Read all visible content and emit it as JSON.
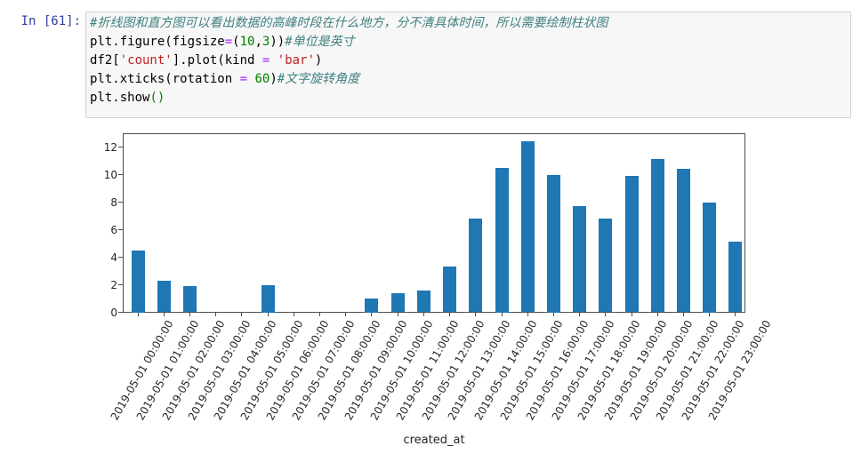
{
  "notebook": {
    "prompt": "In [61]:",
    "code_lines": [
      {
        "segments": [
          {
            "type": "comment",
            "text": "#折线图和直方图可以看出数据的高峰时段在什么地方，分不清具体时间，所以需要绘制柱状图"
          }
        ]
      },
      {
        "segments": [
          {
            "type": "plain",
            "text": "plt.figure(figsize"
          },
          {
            "type": "operator",
            "text": "="
          },
          {
            "type": "plain",
            "text": "("
          },
          {
            "type": "number",
            "text": "10"
          },
          {
            "type": "plain",
            "text": ","
          },
          {
            "type": "number",
            "text": "3"
          },
          {
            "type": "plain",
            "text": "))"
          },
          {
            "type": "comment",
            "text": "#单位是英寸"
          }
        ]
      },
      {
        "segments": [
          {
            "type": "plain",
            "text": "df2["
          },
          {
            "type": "string",
            "text": "'count'"
          },
          {
            "type": "plain",
            "text": "].plot(kind "
          },
          {
            "type": "operator",
            "text": "="
          },
          {
            "type": "plain",
            "text": " "
          },
          {
            "type": "string",
            "text": "'bar'"
          },
          {
            "type": "plain",
            "text": ")"
          }
        ]
      },
      {
        "segments": [
          {
            "type": "plain",
            "text": "plt.xticks(rotation "
          },
          {
            "type": "operator",
            "text": "="
          },
          {
            "type": "plain",
            "text": " "
          },
          {
            "type": "number",
            "text": "60"
          },
          {
            "type": "plain",
            "text": ")"
          },
          {
            "type": "comment",
            "text": "#文字旋转角度"
          }
        ]
      },
      {
        "segments": [
          {
            "type": "plain",
            "text": "plt.show"
          },
          {
            "type": "bracket",
            "text": "()"
          }
        ]
      }
    ],
    "syntax_colors": {
      "plain": "#000000",
      "comment": "#408080",
      "string": "#BA2121",
      "number": "#008000",
      "operator": "#AA22FF",
      "bracket": "#008000"
    },
    "prompt_color": "#303F9F",
    "input_bg": "#f7f7f7",
    "input_border": "#cfcfcf"
  },
  "chart_data": {
    "type": "bar",
    "title": "",
    "xlabel": "created_at",
    "ylabel": "",
    "categories": [
      "2019-05-01 00:00:00",
      "2019-05-01 01:00:00",
      "2019-05-01 02:00:00",
      "2019-05-01 03:00:00",
      "2019-05-01 04:00:00",
      "2019-05-01 05:00:00",
      "2019-05-01 06:00:00",
      "2019-05-01 07:00:00",
      "2019-05-01 08:00:00",
      "2019-05-01 09:00:00",
      "2019-05-01 10:00:00",
      "2019-05-01 11:00:00",
      "2019-05-01 12:00:00",
      "2019-05-01 13:00:00",
      "2019-05-01 14:00:00",
      "2019-05-01 15:00:00",
      "2019-05-01 16:00:00",
      "2019-05-01 17:00:00",
      "2019-05-01 18:00:00",
      "2019-05-01 19:00:00",
      "2019-05-01 20:00:00",
      "2019-05-01 21:00:00",
      "2019-05-01 22:00:00",
      "2019-05-01 23:00:00"
    ],
    "values": [
      4.5,
      2.3,
      1.9,
      0,
      0,
      2.0,
      0,
      0,
      0,
      1.0,
      1.4,
      1.6,
      3.3,
      6.8,
      10.5,
      12.4,
      10.0,
      7.7,
      6.8,
      9.9,
      11.1,
      10.4,
      8.0,
      5.1
    ],
    "yticks": [
      0,
      2,
      4,
      6,
      8,
      10,
      12
    ],
    "ylim": [
      0,
      13
    ],
    "xtick_rotation": 60,
    "grid": false,
    "legend": "none",
    "bar_color": "#1f77b4",
    "axis_color": "#4d4d4d",
    "tick_label_color": "#262626"
  }
}
